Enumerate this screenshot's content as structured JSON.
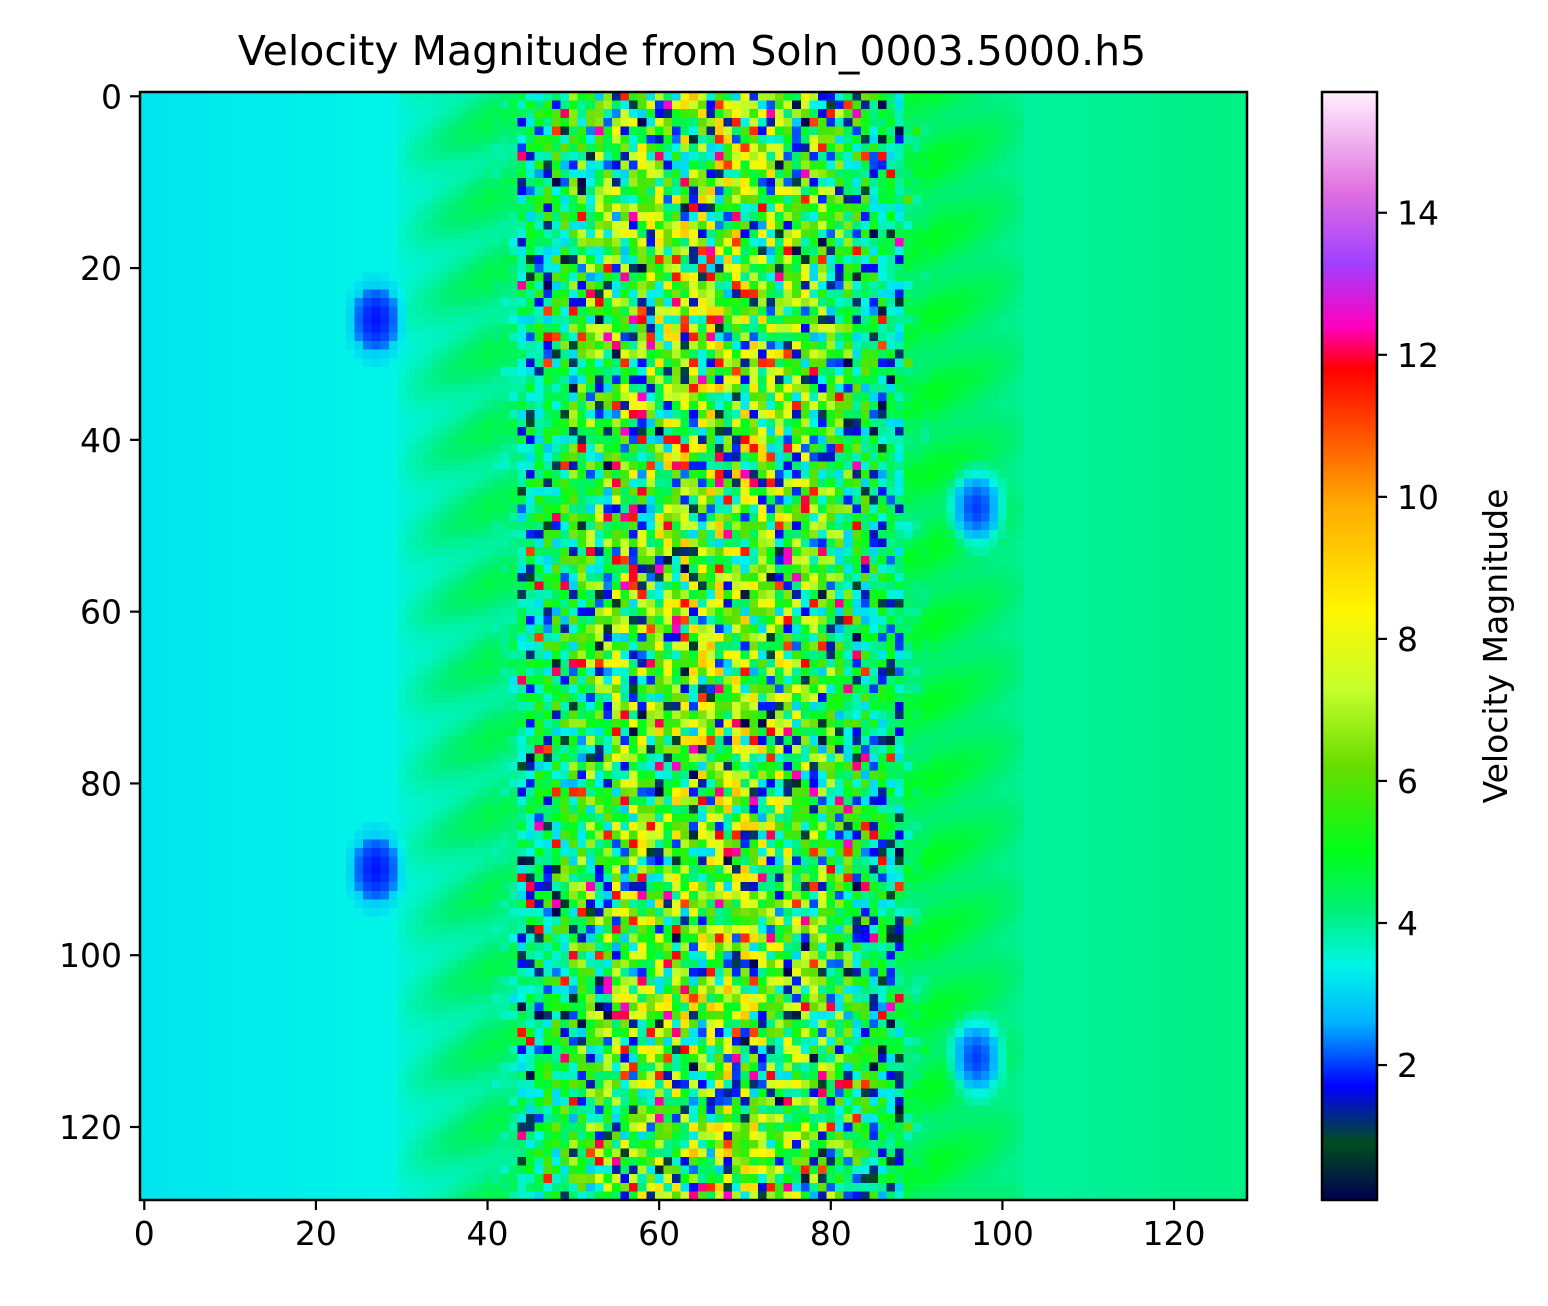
{
  "chart_data": {
    "type": "heatmap",
    "title": "Velocity Magnitude from Soln_0003.5000.h5",
    "xlabel": "",
    "ylabel": "",
    "grid_size": [
      129,
      129
    ],
    "xlim": [
      0,
      128
    ],
    "ylim": [
      128,
      0
    ],
    "y_inverted": true,
    "x_ticks": [
      "0",
      "20",
      "40",
      "60",
      "80",
      "100",
      "120"
    ],
    "y_ticks": [
      "0",
      "20",
      "40",
      "60",
      "80",
      "100",
      "120"
    ],
    "grid": false,
    "colormap": "gist_ncar",
    "colorbar": {
      "label": "Velocity Magnitude",
      "range": [
        0.1,
        15.7
      ],
      "ticks": [
        "2",
        "4",
        "6",
        "8",
        "10",
        "12",
        "14"
      ],
      "stops": [
        {
          "value": 0.1,
          "color": "#000050"
        },
        {
          "value": 0.9,
          "color": "#004c1f"
        },
        {
          "value": 1.7,
          "color": "#0000ff"
        },
        {
          "value": 2.6,
          "color": "#00b4ff"
        },
        {
          "value": 3.4,
          "color": "#00f5e8"
        },
        {
          "value": 4.2,
          "color": "#00f075"
        },
        {
          "value": 5.0,
          "color": "#00ff1a"
        },
        {
          "value": 6.2,
          "color": "#66dd00"
        },
        {
          "value": 7.3,
          "color": "#c6ff2c"
        },
        {
          "value": 8.4,
          "color": "#fff600"
        },
        {
          "value": 9.9,
          "color": "#ffaa00"
        },
        {
          "value": 11.8,
          "color": "#ff0000"
        },
        {
          "value": 12.4,
          "color": "#ff00c0"
        },
        {
          "value": 13.3,
          "color": "#a040ff"
        },
        {
          "value": 14.3,
          "color": "#e070e0"
        },
        {
          "value": 15.7,
          "color": "#fff0ff"
        }
      ]
    },
    "field_description": {
      "background_left": 3.2,
      "background_right": 4.1,
      "turbulent_band_x": [
        40,
        92
      ],
      "turbulent_band_max": 12.5,
      "turbulent_band_min": 1.0,
      "halo_band_x": [
        22,
        96
      ],
      "low_velocity_spots": [
        {
          "x": 27,
          "y": 26,
          "value": 1.8
        },
        {
          "x": 27,
          "y": 90,
          "value": 1.8
        },
        {
          "x": 97,
          "y": 48,
          "value": 2.0
        },
        {
          "x": 97,
          "y": 112,
          "value": 2.0
        }
      ]
    }
  }
}
